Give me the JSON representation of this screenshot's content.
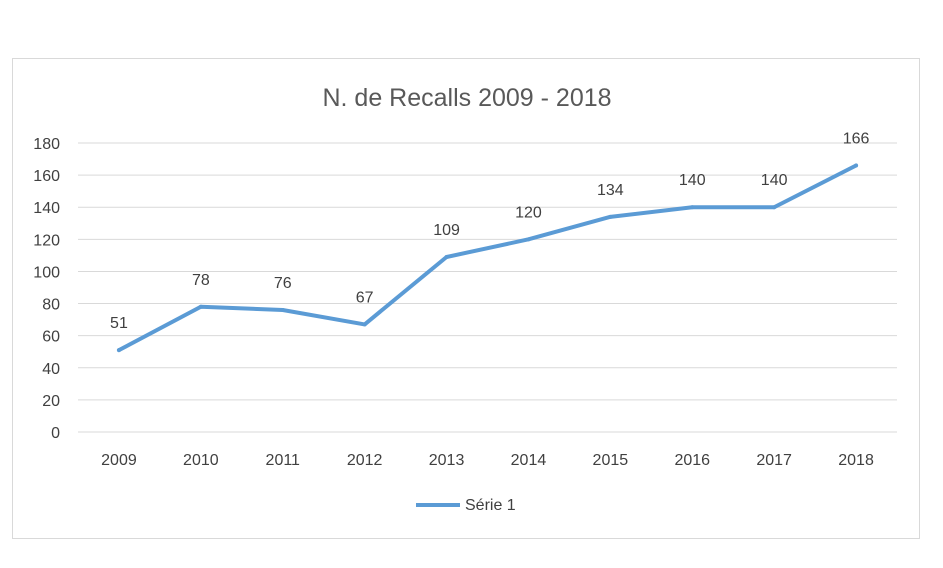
{
  "chart_data": {
    "type": "line",
    "title": "N. de Recalls 2009 - 2018",
    "xlabel": "",
    "ylabel": "",
    "categories": [
      "2009",
      "2010",
      "2011",
      "2012",
      "2013",
      "2014",
      "2015",
      "2016",
      "2017",
      "2018"
    ],
    "series": [
      {
        "name": "Série 1",
        "values": [
          51,
          78,
          76,
          67,
          109,
          120,
          134,
          140,
          140,
          166
        ],
        "color": "#5b9bd5"
      }
    ],
    "ylim": [
      0,
      180
    ],
    "yticks": [
      "0",
      "20",
      "40",
      "60",
      "80",
      "100",
      "120",
      "140",
      "160",
      "180"
    ],
    "grid": true,
    "legend": "bottom",
    "gridColor": "#d9d9d9"
  }
}
